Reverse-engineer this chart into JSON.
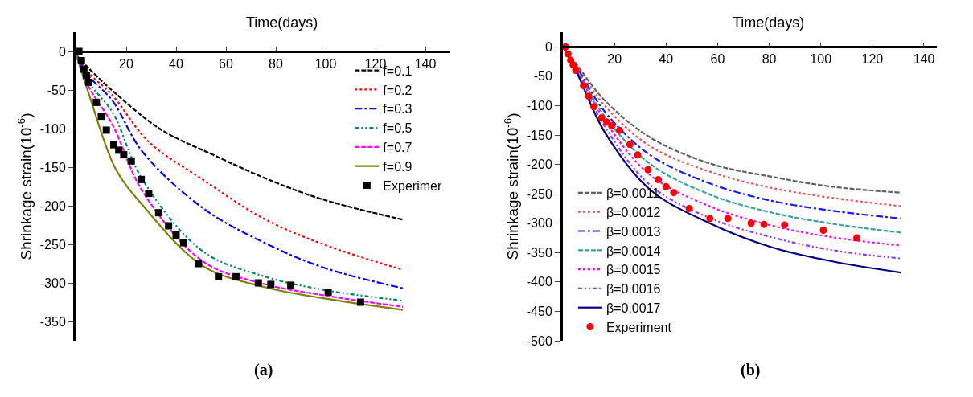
{
  "chart_data": [
    {
      "type": "line",
      "xlabel": "Time(days)",
      "ylabel": "Shrinkage strain(10$^{-6}$)",
      "xlim": [
        0,
        150
      ],
      "xticks": [
        20,
        40,
        60,
        80,
        100,
        120,
        140
      ],
      "ylim": [
        -375,
        25
      ],
      "yticks": [
        0,
        -50,
        -100,
        -150,
        -200,
        -250,
        -300,
        -350
      ],
      "legend": "top right",
      "grid": false,
      "annotations": [
        "(a)"
      ],
      "x": [
        0,
        5,
        14.5,
        33.8,
        55.5,
        77,
        99,
        131
      ],
      "series": [
        {
          "name": "f=0.1",
          "color": "#000000",
          "line_style": "dashed",
          "values": [
            -5,
            -22,
            -51,
            -101,
            -135,
            -166,
            -192,
            -218
          ]
        },
        {
          "name": "f=0.2",
          "color": "#ff0000",
          "line_style": "dotted",
          "x": [
            0,
            5,
            14.5,
            29,
            50.7,
            74.8,
            99,
            131
          ],
          "values": [
            -5,
            -28,
            -57,
            -117,
            -166,
            -216,
            -250,
            -283
          ]
        },
        {
          "name": "f=0.3",
          "color": "#0000ff",
          "line_style": "dashdot",
          "x": [
            0,
            5,
            14.5,
            26.5,
            50.7,
            74.8,
            99,
            131
          ],
          "values": [
            -5,
            -32,
            -64,
            -130,
            -203,
            -247,
            -280,
            -307
          ]
        },
        {
          "name": "f=0.5",
          "color": "#008080",
          "line_style": "dashdotdot",
          "x": [
            0,
            5,
            14.5,
            26.5,
            50.7,
            74.8,
            99,
            131
          ],
          "values": [
            -5,
            -40,
            -79,
            -166,
            -259,
            -291,
            -309,
            -323
          ]
        },
        {
          "name": "f=0.7",
          "color": "#ff00ff",
          "line_style": "dashed",
          "x": [
            0,
            5,
            14.5,
            26.5,
            50.7,
            74.8,
            99,
            131
          ],
          "values": [
            -5,
            -46,
            -95,
            -181,
            -272,
            -301,
            -316,
            -331
          ]
        },
        {
          "name": "f=0.9",
          "color": "#808000",
          "line_style": "solid",
          "x": [
            0,
            5,
            15.7,
            26.5,
            50.7,
            74.8,
            99,
            131
          ],
          "values": [
            -5,
            -55,
            -152,
            -199,
            -278,
            -305,
            -320,
            -335
          ]
        },
        {
          "name": "Experimer",
          "type": "scatter",
          "marker": "square",
          "color": "#000000",
          "x": [
            1,
            2,
            3,
            4,
            5,
            8,
            10,
            12,
            15,
            17,
            19,
            22,
            26,
            29,
            33,
            37,
            40,
            43,
            49,
            57,
            64,
            73,
            78,
            86,
            101,
            114
          ],
          "values": [
            0,
            -12,
            -23,
            -31,
            -40,
            -66,
            -84,
            -102,
            -121,
            -128,
            -134,
            -142,
            -166,
            -184,
            -209,
            -226,
            -238,
            -248,
            -275,
            -292,
            -292,
            -300,
            -302,
            -303,
            -312,
            -325
          ]
        }
      ]
    },
    {
      "type": "line",
      "xlabel": "Time(days)",
      "ylabel": "Shrinkage strain(10$^{-6}$)",
      "xlim": [
        0,
        145
      ],
      "xticks": [
        20,
        40,
        60,
        80,
        100,
        120,
        140
      ],
      "ylim": [
        -500,
        25
      ],
      "yticks": [
        0,
        -50,
        -100,
        -150,
        -200,
        -250,
        -300,
        -350,
        -400,
        -450,
        -500
      ],
      "legend": "bottom left",
      "grid": false,
      "annotations": [
        "(b)"
      ],
      "x": [
        0,
        5,
        16.2,
        33.8,
        57.4,
        81,
        104.6,
        131
      ],
      "series": [
        {
          "name": "β=0.0011",
          "color": "#606060",
          "line_style": "dashed",
          "values": [
            0,
            -28,
            -91,
            -154,
            -199,
            -221,
            -238,
            -248
          ]
        },
        {
          "name": "β=0.0012",
          "color": "#f05050",
          "line_style": "dotted",
          "values": [
            0,
            -30,
            -100,
            -169,
            -213,
            -240,
            -257,
            -271
          ]
        },
        {
          "name": "β=0.0013",
          "color": "#1a1aff",
          "line_style": "dashdot",
          "values": [
            0,
            -32,
            -110,
            -184,
            -233,
            -262,
            -279,
            -292
          ]
        },
        {
          "name": "β=0.0014",
          "color": "#3aa0a0",
          "line_style": "dashed",
          "values": [
            0,
            -34,
            -118,
            -199,
            -252,
            -282,
            -301,
            -316
          ]
        },
        {
          "name": "β=0.0015",
          "color": "#ff00ff",
          "line_style": "dotted",
          "values": [
            0,
            -36,
            -125,
            -218,
            -272,
            -304,
            -324,
            -338
          ]
        },
        {
          "name": "β=0.0016",
          "color": "#9933ff",
          "line_style": "dashdotdot",
          "values": [
            0,
            -38,
            -135,
            -235,
            -292,
            -324,
            -346,
            -360
          ]
        },
        {
          "name": "β=0.0017",
          "color": "#000080",
          "line_style": "solid",
          "values": [
            0,
            -40,
            -145,
            -243,
            -301,
            -341,
            -365,
            -384
          ]
        },
        {
          "name": "Experiment",
          "type": "scatter",
          "marker": "circle",
          "color": "#ff0000",
          "x": [
            1,
            2,
            3,
            4,
            5,
            8,
            10,
            12,
            15,
            17,
            19,
            22,
            26,
            29,
            33,
            37,
            40,
            43,
            49,
            57,
            64,
            73,
            78,
            86,
            101,
            114
          ],
          "values": [
            0,
            -12,
            -23,
            -31,
            -40,
            -66,
            -84,
            -102,
            -121,
            -128,
            -134,
            -142,
            -166,
            -184,
            -209,
            -226,
            -238,
            -248,
            -275,
            -292,
            -292,
            -300,
            -302,
            -303,
            -312,
            -325
          ]
        }
      ]
    }
  ]
}
